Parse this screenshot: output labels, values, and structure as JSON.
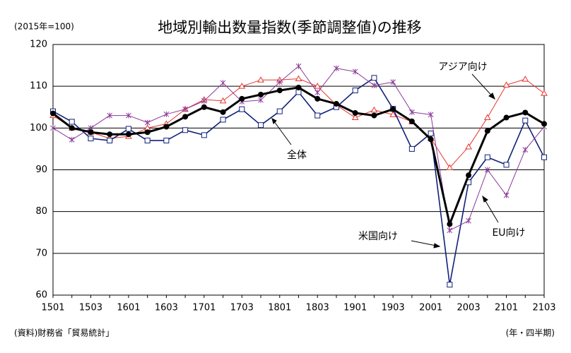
{
  "chart_data": {
    "type": "line",
    "title": "地域別輸出数量指数(季節調整値)の推移",
    "unit_label": "(2015年=100)",
    "source": "(資料)財務省「貿易統計」",
    "x_label": "(年・四半期)",
    "categories": [
      "1501",
      null,
      "1503",
      null,
      "1601",
      null,
      "1603",
      null,
      "1701",
      null,
      "1703",
      null,
      "1801",
      null,
      "1803",
      null,
      "1901",
      null,
      "1903",
      null,
      "2001",
      null,
      "2003",
      null,
      "2101",
      null,
      "2103"
    ],
    "ylim": [
      60,
      120
    ],
    "yticks": [
      60,
      70,
      80,
      90,
      100,
      110,
      120
    ],
    "grid": true,
    "series": [
      {
        "name": "アジア向け",
        "color": "#e8352f",
        "marker": "triangle",
        "values": [
          103,
          100,
          99,
          97.5,
          98,
          100,
          101,
          104.5,
          106.8,
          106.5,
          110,
          111.5,
          111.5,
          111.8,
          110,
          105.5,
          102.5,
          104.3,
          103.2,
          101.5,
          97.5,
          90.5,
          95.5,
          102.5,
          110.3,
          111.7,
          108.3
        ]
      },
      {
        "name": "米国向け",
        "color": "#10207a",
        "marker": "square",
        "values": [
          104,
          101.5,
          97.5,
          97,
          99.8,
          97,
          97,
          99.5,
          98.3,
          102,
          104.5,
          100.7,
          104,
          108.6,
          103,
          105,
          109,
          112,
          104.6,
          95,
          98.7,
          62.5,
          87,
          93,
          91.2,
          101.8,
          93
        ]
      },
      {
        "name": "EU向け",
        "color": "#8a3a9a",
        "marker": "star",
        "values": [
          100,
          97.2,
          100,
          103,
          103,
          101.3,
          103.3,
          104.5,
          106.5,
          110.8,
          106.3,
          106.7,
          111,
          114.8,
          108.5,
          114.3,
          113.5,
          110.2,
          111,
          103.8,
          103.2,
          75.5,
          77.8,
          90,
          83.9,
          94.8,
          100.3
        ]
      },
      {
        "name": "全体",
        "color": "#000000",
        "marker": "dot",
        "values": [
          103.5,
          100,
          99,
          98.5,
          98.5,
          99,
          100.3,
          102.7,
          105,
          103.8,
          107,
          108,
          109,
          109.7,
          107,
          105.8,
          103.6,
          103,
          104.5,
          101.6,
          97.3,
          77,
          88.7,
          99.3,
          102.5,
          103.7,
          101
        ]
      }
    ]
  }
}
